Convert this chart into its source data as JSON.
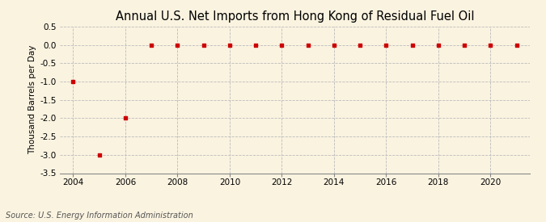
{
  "title": "Annual U.S. Net Imports from Hong Kong of Residual Fuel Oil",
  "ylabel": "Thousand Barrels per Day",
  "source": "Source: U.S. Energy Information Administration",
  "background_color": "#faf3e0",
  "plot_background_color": "#faf3e0",
  "years": [
    2004,
    2005,
    2006,
    2007,
    2008,
    2009,
    2010,
    2011,
    2012,
    2013,
    2014,
    2015,
    2016,
    2017,
    2018,
    2019,
    2020,
    2021
  ],
  "values": [
    -1.0,
    -3.0,
    -2.0,
    0.0,
    0.0,
    0.0,
    0.0,
    0.0,
    0.0,
    0.0,
    0.0,
    0.0,
    0.0,
    0.0,
    0.0,
    0.0,
    0.0,
    0.0
  ],
  "marker_color": "#cc0000",
  "marker_style": "s",
  "marker_size": 3.5,
  "xlim": [
    2003.5,
    2021.5
  ],
  "ylim": [
    -3.5,
    0.5
  ],
  "yticks": [
    0.5,
    0.0,
    -0.5,
    -1.0,
    -1.5,
    -2.0,
    -2.5,
    -3.0,
    -3.5
  ],
  "ytick_labels": [
    "0.5",
    "0.0",
    "-0.5",
    "-1.0",
    "-1.5",
    "-2.0",
    "-2.5",
    "-3.0",
    "-3.5"
  ],
  "xticks": [
    2004,
    2006,
    2008,
    2010,
    2012,
    2014,
    2016,
    2018,
    2020
  ],
  "title_fontsize": 10.5,
  "label_fontsize": 7.5,
  "tick_fontsize": 7.5,
  "source_fontsize": 7.0,
  "grid_color": "#bbbbbb",
  "grid_linestyle": "--",
  "grid_linewidth": 0.6
}
